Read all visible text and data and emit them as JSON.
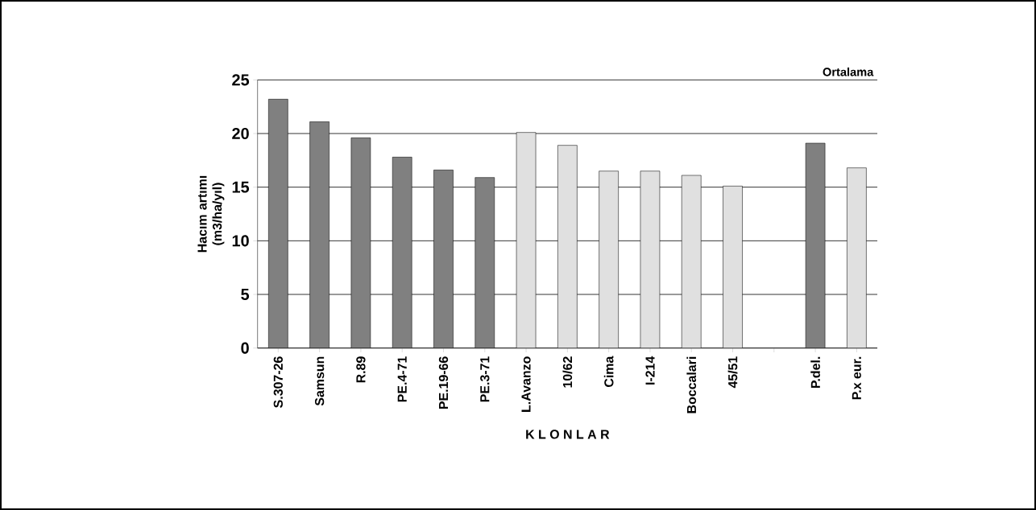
{
  "chart_data": {
    "type": "bar",
    "ylabel": "Hacım artımı (m3/ha/yıl)",
    "xlabel": "K L O N L A R",
    "categories": [
      "S.307-26",
      "Samsun",
      "R.89",
      "PE.4-71",
      "PE.19-66",
      "PE.3-71",
      "L.Avanzo",
      "10/62",
      "Cima",
      "I-214",
      "Boccalari",
      "45/51",
      null,
      "P.del.",
      "P.x eur."
    ],
    "values": [
      23.2,
      21.1,
      19.6,
      17.8,
      16.6,
      15.9,
      20.1,
      18.9,
      16.5,
      16.5,
      16.1,
      15.1,
      null,
      19.1,
      16.8
    ],
    "colors": [
      "#808080",
      "#808080",
      "#808080",
      "#808080",
      "#808080",
      "#808080",
      "#e0e0e0",
      "#e0e0e0",
      "#e0e0e0",
      "#e0e0e0",
      "#e0e0e0",
      "#e0e0e0",
      null,
      "#808080",
      "#e0e0e0"
    ],
    "ylim": [
      0,
      25
    ],
    "yticks": [
      0,
      5,
      10,
      15,
      20,
      25
    ],
    "grid": "y",
    "annotations": [
      "Ortalama"
    ]
  }
}
